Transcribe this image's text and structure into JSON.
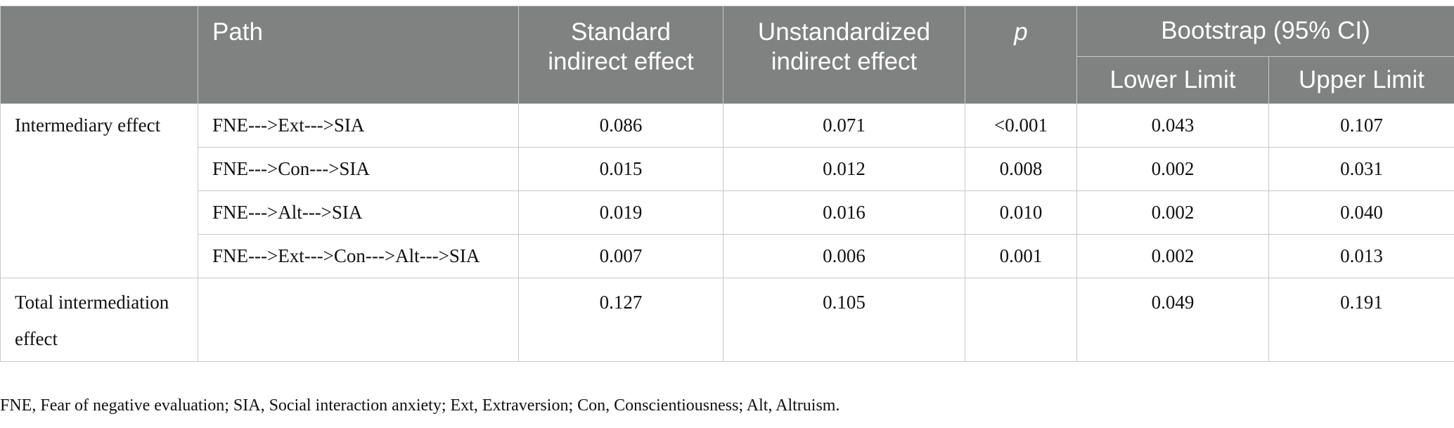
{
  "table": {
    "headers": {
      "path": "Path",
      "standard": "Standard indirect effect",
      "unstandardized": "Unstandardized indirect effect",
      "p": "p",
      "bootstrap": "Bootstrap (95% CI)",
      "lower": "Lower Limit",
      "upper": "Upper Limit"
    },
    "groups": [
      {
        "label": "Intermediary effect",
        "rows": [
          {
            "path": "FNE--->Ext--->SIA",
            "standard": "0.086",
            "unstandardized": "0.071",
            "p": "<0.001",
            "lower": "0.043",
            "upper": "0.107"
          },
          {
            "path": "FNE--->Con--->SIA",
            "standard": "0.015",
            "unstandardized": "0.012",
            "p": "0.008",
            "lower": "0.002",
            "upper": "0.031"
          },
          {
            "path": "FNE--->Alt--->SIA",
            "standard": "0.019",
            "unstandardized": "0.016",
            "p": "0.010",
            "lower": "0.002",
            "upper": "0.040"
          },
          {
            "path": "FNE--->Ext--->Con--->Alt--->SIA",
            "standard": "0.007",
            "unstandardized": "0.006",
            "p": "0.001",
            "lower": "0.002",
            "upper": "0.013"
          }
        ]
      }
    ],
    "total": {
      "label": "Total intermediation effect",
      "path": "",
      "standard": "0.127",
      "unstandardized": "0.105",
      "p": "",
      "lower": "0.049",
      "upper": "0.191"
    }
  },
  "footnote": "FNE, Fear of negative evaluation; SIA, Social interaction anxiety; Ext, Extraversion; Con, Conscientiousness; Alt, Altruism."
}
